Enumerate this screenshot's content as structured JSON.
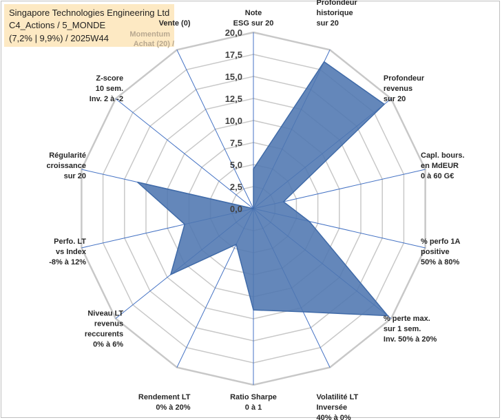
{
  "header": {
    "line1": "Singapore Technologies Engineering Ltd",
    "line2": "C4_Actions / 5_MONDE",
    "line3": "(7,2% | 9,9%) / 2025W44",
    "ghost_line1": "Momentum",
    "ghost_line2": "Achat (20) /"
  },
  "chart_data": {
    "type": "radar",
    "scale": {
      "min": 0,
      "max": 20,
      "step": 2.5
    },
    "tick_labels": [
      "0,0",
      "2,5",
      "5,0",
      "7,5",
      "10,0",
      "12,5",
      "15,0",
      "17,5",
      "20,0"
    ],
    "colors": {
      "fill": "#4f76b0",
      "stroke": "#3f6aa8",
      "grid": "#c8c8c8",
      "spoke": "#4472c4"
    },
    "axes": [
      {
        "lines": [
          "Note",
          "ESG sur 20"
        ],
        "value": 4.5
      },
      {
        "lines": [
          "Profondeur",
          "historique",
          "sur 20"
        ],
        "value": 18.5
      },
      {
        "lines": [
          "Profondeur",
          "revenus",
          "sur 20"
        ],
        "value": 19.0
      },
      {
        "lines": [
          "Capl. bours.",
          "en MdEUR",
          "0 à 60 G€"
        ],
        "value": 3.5
      },
      {
        "lines": [
          "% perfo 1A",
          "positive",
          "50% à 80%"
        ],
        "value": 6.5
      },
      {
        "lines": [
          "% perte max.",
          "sur 1 sem.",
          "Inv. 50% à 20%"
        ],
        "value": 19.5
      },
      {
        "lines": [
          "Volatilité LT",
          "Inversée",
          "40% à 0%"
        ],
        "value": 13.0
      },
      {
        "lines": [
          "Ratio Sharpe",
          "0 à 1"
        ],
        "value": 11.5
      },
      {
        "lines": [
          "Rendement LT",
          "0% à 20%"
        ],
        "value": 4.5
      },
      {
        "lines": [
          "Niveau LT",
          "revenus",
          "reccurents",
          "0% à 6%"
        ],
        "value": 12.0
      },
      {
        "lines": [
          "Perfo. LT",
          "vs Index",
          "-8% à 12%"
        ],
        "value": 8.0
      },
      {
        "lines": [
          "Régularité",
          "croissance",
          "sur 20"
        ],
        "value": 13.5
      },
      {
        "lines": [
          "Z-score",
          "10 sem.",
          "Inv. 2 à -2"
        ],
        "value": 0.0
      },
      {
        "lines": [
          "Vente (0)"
        ],
        "value": 0.0
      }
    ]
  }
}
